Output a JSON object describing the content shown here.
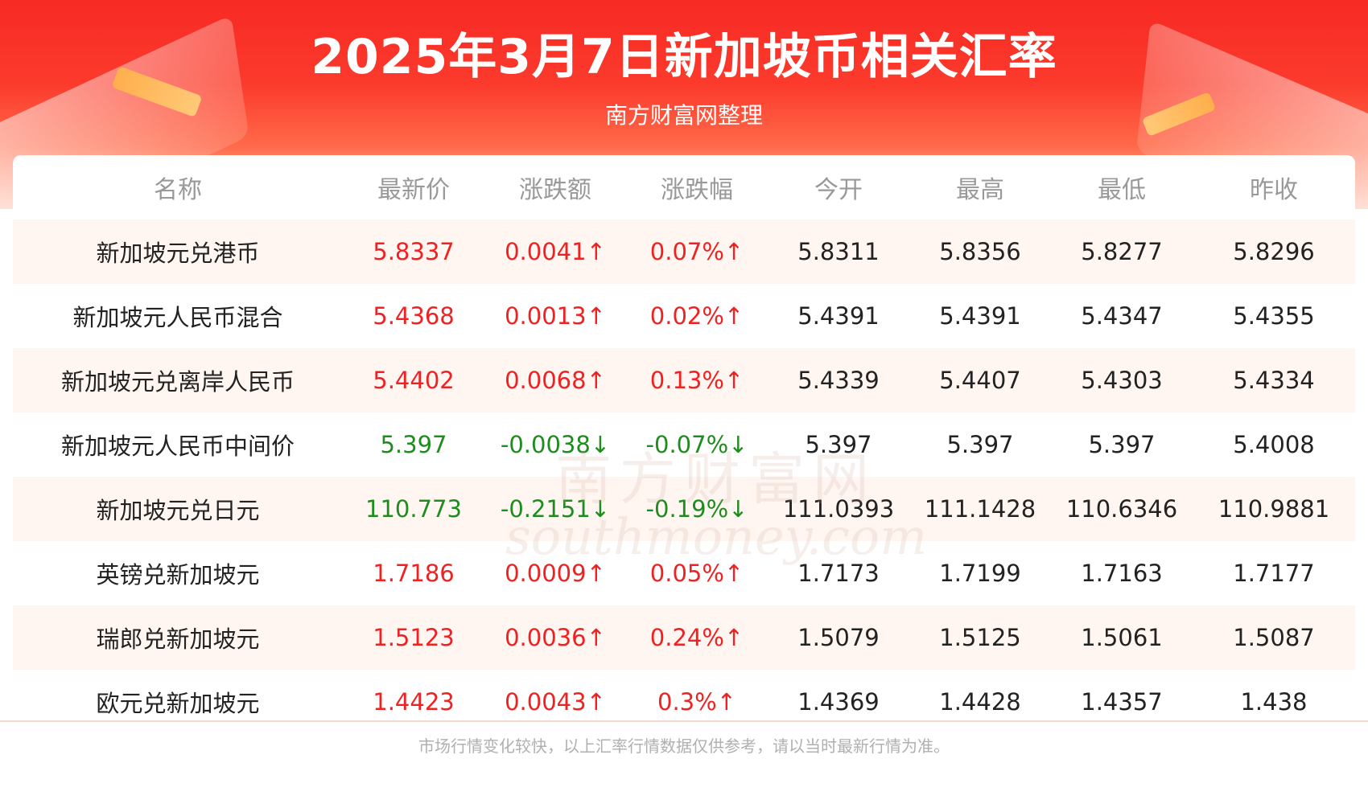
{
  "header": {
    "title": "2025年3月7日新加坡币相关汇率",
    "subtitle": "南方财富网整理"
  },
  "colors": {
    "up": "#ee2222",
    "down": "#1f8c1f",
    "header_red": "#f72a24"
  },
  "watermark": {
    "cn": "南方财富网",
    "en": "southmoney.com"
  },
  "table": {
    "columns": [
      "名称",
      "最新价",
      "涨跌额",
      "涨跌幅",
      "今开",
      "最高",
      "最低",
      "昨收"
    ],
    "rows": [
      {
        "name": "新加坡元兑港币",
        "latest": "5.8337",
        "change": "0.0041↑",
        "change_pct": "0.07%↑",
        "open": "5.8311",
        "high": "5.8356",
        "low": "5.8277",
        "prev_close": "5.8296",
        "trend": "up"
      },
      {
        "name": "新加坡元人民币混合",
        "latest": "5.4368",
        "change": "0.0013↑",
        "change_pct": "0.02%↑",
        "open": "5.4391",
        "high": "5.4391",
        "low": "5.4347",
        "prev_close": "5.4355",
        "trend": "up"
      },
      {
        "name": "新加坡元兑离岸人民币",
        "latest": "5.4402",
        "change": "0.0068↑",
        "change_pct": "0.13%↑",
        "open": "5.4339",
        "high": "5.4407",
        "low": "5.4303",
        "prev_close": "5.4334",
        "trend": "up"
      },
      {
        "name": "新加坡元人民币中间价",
        "latest": "5.397",
        "change": "-0.0038↓",
        "change_pct": "-0.07%↓",
        "open": "5.397",
        "high": "5.397",
        "low": "5.397",
        "prev_close": "5.4008",
        "trend": "down"
      },
      {
        "name": "新加坡元兑日元",
        "latest": "110.773",
        "change": "-0.2151↓",
        "change_pct": "-0.19%↓",
        "open": "111.0393",
        "high": "111.1428",
        "low": "110.6346",
        "prev_close": "110.9881",
        "trend": "down"
      },
      {
        "name": "英镑兑新加坡元",
        "latest": "1.7186",
        "change": "0.0009↑",
        "change_pct": "0.05%↑",
        "open": "1.7173",
        "high": "1.7199",
        "low": "1.7163",
        "prev_close": "1.7177",
        "trend": "up"
      },
      {
        "name": "瑞郎兑新加坡元",
        "latest": "1.5123",
        "change": "0.0036↑",
        "change_pct": "0.24%↑",
        "open": "1.5079",
        "high": "1.5125",
        "low": "1.5061",
        "prev_close": "1.5087",
        "trend": "up"
      },
      {
        "name": "欧元兑新加坡元",
        "latest": "1.4423",
        "change": "0.0043↑",
        "change_pct": "0.3%↑",
        "open": "1.4369",
        "high": "1.4428",
        "low": "1.4357",
        "prev_close": "1.438",
        "trend": "up"
      }
    ]
  },
  "footer": {
    "note": "市场行情变化较快，以上汇率行情数据仅供参考，请以当时最新行情为准。"
  }
}
